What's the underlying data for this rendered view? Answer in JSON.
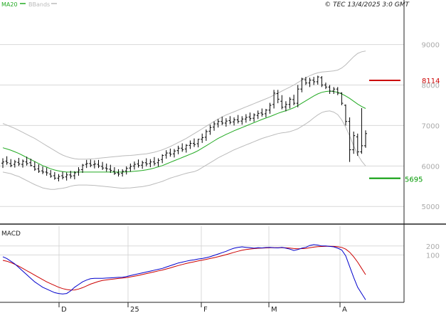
{
  "header": {
    "legend": [
      {
        "name": "MA20",
        "color": "#22aa22"
      },
      {
        "name": "BBands",
        "color": "#bbbbbb"
      }
    ],
    "copyright": "© TEC 13/4/2025 3:0 GMT"
  },
  "chart_data": [
    {
      "type": "line",
      "panel": "price",
      "ylim": [
        4600,
        10100
      ],
      "y_ticks": [
        5000,
        6000,
        7000,
        8000,
        9000
      ],
      "y_tick_labels": [
        "5000",
        "6000",
        "7000",
        "8000",
        "9000"
      ],
      "x_ticks": [
        "D",
        "25",
        "F",
        "M",
        "A"
      ],
      "grid": true,
      "levels": [
        {
          "label": "8114",
          "value": 8114,
          "color": "#cc0000"
        },
        {
          "label": "5695",
          "value": 5695,
          "color": "#009900"
        }
      ],
      "price_bars": [
        [
          6070,
          6190,
          5950,
          6100
        ],
        [
          6120,
          6240,
          6030,
          6080
        ],
        [
          6060,
          6170,
          5970,
          6010
        ],
        [
          6040,
          6150,
          5960,
          6100
        ],
        [
          6090,
          6200,
          6000,
          6050
        ],
        [
          6040,
          6160,
          5960,
          6120
        ],
        [
          6100,
          6230,
          6010,
          6060
        ],
        [
          6080,
          6180,
          5990,
          6010
        ],
        [
          5980,
          6110,
          5880,
          5920
        ],
        [
          5930,
          6040,
          5830,
          5870
        ],
        [
          5880,
          5990,
          5800,
          5850
        ],
        [
          5850,
          5960,
          5760,
          5830
        ],
        [
          5800,
          5900,
          5710,
          5750
        ],
        [
          5760,
          5850,
          5660,
          5700
        ],
        [
          5700,
          5800,
          5620,
          5740
        ],
        [
          5760,
          5860,
          5670,
          5720
        ],
        [
          5730,
          5840,
          5640,
          5780
        ],
        [
          5780,
          5880,
          5690,
          5750
        ],
        [
          5760,
          5870,
          5670,
          5830
        ],
        [
          5850,
          5970,
          5760,
          5900
        ],
        [
          5910,
          6050,
          5830,
          6020
        ],
        [
          6040,
          6150,
          5950,
          6060
        ],
        [
          6060,
          6160,
          5970,
          6020
        ],
        [
          6030,
          6140,
          5940,
          6050
        ],
        [
          6040,
          6150,
          5950,
          6000
        ],
        [
          5990,
          6100,
          5900,
          5950
        ],
        [
          5950,
          6060,
          5860,
          5930
        ],
        [
          5920,
          6030,
          5830,
          5890
        ],
        [
          5870,
          5970,
          5780,
          5820
        ],
        [
          5830,
          5920,
          5740,
          5800
        ],
        [
          5820,
          5920,
          5740,
          5870
        ],
        [
          5880,
          5990,
          5790,
          5940
        ],
        [
          5950,
          6060,
          5860,
          5990
        ],
        [
          6000,
          6110,
          5910,
          6040
        ],
        [
          6050,
          6160,
          5960,
          6010
        ],
        [
          6020,
          6130,
          5930,
          6080
        ],
        [
          6080,
          6190,
          5990,
          6050
        ],
        [
          6060,
          6170,
          5970,
          6100
        ],
        [
          6100,
          6220,
          6010,
          6060
        ],
        [
          6080,
          6190,
          5990,
          6140
        ],
        [
          6160,
          6290,
          6070,
          6260
        ],
        [
          6270,
          6390,
          6180,
          6320
        ],
        [
          6320,
          6430,
          6230,
          6290
        ],
        [
          6300,
          6420,
          6210,
          6370
        ],
        [
          6380,
          6500,
          6290,
          6440
        ],
        [
          6440,
          6560,
          6350,
          6400
        ],
        [
          6420,
          6540,
          6330,
          6510
        ],
        [
          6510,
          6630,
          6420,
          6560
        ],
        [
          6560,
          6680,
          6470,
          6530
        ],
        [
          6550,
          6670,
          6460,
          6660
        ],
        [
          6660,
          6800,
          6570,
          6700
        ],
        [
          6710,
          6900,
          6620,
          6850
        ],
        [
          6860,
          7020,
          6770,
          6950
        ],
        [
          6960,
          7100,
          6870,
          7040
        ],
        [
          7040,
          7160,
          6950,
          7100
        ],
        [
          7100,
          7220,
          7010,
          7060
        ],
        [
          7060,
          7180,
          6970,
          7110
        ],
        [
          7120,
          7230,
          7030,
          7080
        ],
        [
          7090,
          7200,
          7000,
          7140
        ],
        [
          7140,
          7260,
          7050,
          7100
        ],
        [
          7110,
          7230,
          7020,
          7160
        ],
        [
          7160,
          7280,
          7070,
          7200
        ],
        [
          7210,
          7320,
          7110,
          7170
        ],
        [
          7180,
          7300,
          7090,
          7260
        ],
        [
          7250,
          7370,
          7160,
          7300
        ],
        [
          7310,
          7420,
          7220,
          7280
        ],
        [
          7290,
          7410,
          7200,
          7380
        ],
        [
          7380,
          7560,
          7290,
          7500
        ],
        [
          7520,
          7880,
          7420,
          7800
        ],
        [
          7790,
          7880,
          7550,
          7650
        ],
        [
          7600,
          7750,
          7400,
          7450
        ],
        [
          7460,
          7600,
          7350,
          7520
        ],
        [
          7520,
          7700,
          7420,
          7650
        ],
        [
          7640,
          7760,
          7500,
          7550
        ],
        [
          7550,
          8000,
          7450,
          7900
        ],
        [
          7900,
          8180,
          7820,
          8150
        ],
        [
          8130,
          8200,
          8000,
          8050
        ],
        [
          8050,
          8180,
          7950,
          8120
        ],
        [
          8120,
          8200,
          8000,
          8080
        ],
        [
          8080,
          8230,
          8010,
          8200
        ],
        [
          8180,
          8220,
          7950,
          8000
        ],
        [
          8000,
          8060,
          7900,
          7950
        ],
        [
          7950,
          8000,
          7780,
          7850
        ],
        [
          7850,
          7950,
          7780,
          7900
        ],
        [
          7900,
          7950,
          7750,
          7800
        ],
        [
          7800,
          7820,
          7500,
          7550
        ],
        [
          7500,
          7520,
          7000,
          7100
        ],
        [
          7100,
          7200,
          6100,
          6400
        ],
        [
          6400,
          6850,
          6300,
          6750
        ],
        [
          6720,
          6800,
          6250,
          6350
        ],
        [
          6350,
          7430,
          6300,
          6500
        ],
        [
          6500,
          6880,
          6450,
          6800
        ]
      ],
      "series": [
        {
          "name": "MA20",
          "color": "#22aa22",
          "values": [
            6450,
            6420,
            6390,
            6350,
            6310,
            6260,
            6210,
            6160,
            6110,
            6060,
            6010,
            5970,
            5930,
            5900,
            5880,
            5860,
            5850,
            5850,
            5850,
            5850,
            5850,
            5850,
            5850,
            5850,
            5850,
            5850,
            5850,
            5850,
            5850,
            5850,
            5850,
            5855,
            5860,
            5870,
            5880,
            5890,
            5905,
            5925,
            5950,
            5980,
            6010,
            6050,
            6090,
            6130,
            6170,
            6210,
            6250,
            6290,
            6330,
            6380,
            6440,
            6500,
            6560,
            6620,
            6680,
            6730,
            6780,
            6825,
            6870,
            6910,
            6950,
            6990,
            7030,
            7070,
            7110,
            7150,
            7185,
            7220,
            7260,
            7300,
            7335,
            7365,
            7400,
            7440,
            7490,
            7550,
            7610,
            7670,
            7730,
            7780,
            7820,
            7840,
            7850,
            7840,
            7820,
            7780,
            7730,
            7670,
            7600,
            7530,
            7470,
            7420
          ]
        },
        {
          "name": "BBands upper",
          "color": "#bbbbbb",
          "values": [
            7050,
            7010,
            6970,
            6930,
            6880,
            6830,
            6780,
            6730,
            6680,
            6620,
            6560,
            6500,
            6440,
            6380,
            6320,
            6270,
            6230,
            6200,
            6180,
            6170,
            6170,
            6170,
            6175,
            6180,
            6190,
            6200,
            6210,
            6220,
            6230,
            6240,
            6250,
            6255,
            6260,
            6270,
            6280,
            6290,
            6300,
            6320,
            6340,
            6370,
            6400,
            6440,
            6480,
            6530,
            6580,
            6630,
            6680,
            6740,
            6800,
            6860,
            6920,
            6980,
            7040,
            7100,
            7160,
            7210,
            7260,
            7300,
            7340,
            7380,
            7420,
            7460,
            7500,
            7540,
            7580,
            7620,
            7660,
            7700,
            7750,
            7800,
            7850,
            7900,
            7950,
            8000,
            8060,
            8120,
            8180,
            8230,
            8270,
            8300,
            8320,
            8330,
            8340,
            8350,
            8370,
            8420,
            8500,
            8600,
            8700,
            8780,
            8820,
            8840
          ]
        },
        {
          "name": "BBands lower",
          "color": "#bbbbbb",
          "values": [
            5850,
            5830,
            5810,
            5770,
            5740,
            5690,
            5640,
            5590,
            5540,
            5500,
            5460,
            5440,
            5420,
            5420,
            5440,
            5450,
            5470,
            5500,
            5520,
            5530,
            5530,
            5530,
            5525,
            5520,
            5510,
            5500,
            5490,
            5480,
            5470,
            5460,
            5450,
            5455,
            5460,
            5470,
            5480,
            5490,
            5510,
            5530,
            5560,
            5590,
            5620,
            5660,
            5700,
            5730,
            5760,
            5790,
            5820,
            5840,
            5860,
            5900,
            5960,
            6020,
            6080,
            6140,
            6200,
            6250,
            6300,
            6350,
            6400,
            6440,
            6480,
            6520,
            6560,
            6600,
            6640,
            6680,
            6710,
            6740,
            6770,
            6800,
            6820,
            6830,
            6850,
            6880,
            6920,
            6980,
            7040,
            7110,
            7190,
            7260,
            7320,
            7350,
            7360,
            7330,
            7270,
            7140,
            6960,
            6740,
            6500,
            6280,
            6120,
            6000
          ]
        }
      ]
    },
    {
      "type": "line",
      "panel": "macd",
      "title": "MACD",
      "ylim": [
        -420,
        420
      ],
      "y_ticks": [
        100,
        200
      ],
      "y_tick_labels": [
        "100",
        "200"
      ],
      "x_ticks": [
        "D",
        "25",
        "F",
        "M",
        "A"
      ],
      "grid": true,
      "series": [
        {
          "name": "MACD",
          "color": "#0000cc",
          "values": [
            80,
            60,
            30,
            0,
            -40,
            -80,
            -120,
            -160,
            -200,
            -230,
            -260,
            -280,
            -300,
            -320,
            -330,
            -335,
            -330,
            -300,
            -260,
            -230,
            -200,
            -180,
            -165,
            -160,
            -160,
            -160,
            -158,
            -155,
            -152,
            -150,
            -148,
            -140,
            -130,
            -120,
            -110,
            -100,
            -90,
            -80,
            -70,
            -60,
            -50,
            -35,
            -20,
            -5,
            10,
            20,
            30,
            40,
            45,
            55,
            60,
            70,
            80,
            95,
            110,
            125,
            140,
            160,
            175,
            185,
            190,
            185,
            180,
            175,
            180,
            178,
            182,
            185,
            180,
            178,
            185,
            175,
            165,
            150,
            160,
            175,
            185,
            205,
            215,
            210,
            200,
            200,
            195,
            190,
            175,
            155,
            90,
            -30,
            -150,
            -260,
            -330,
            -400
          ]
        },
        {
          "name": "Signal",
          "color": "#cc0000",
          "values": [
            40,
            30,
            15,
            -5,
            -25,
            -50,
            -75,
            -100,
            -125,
            -150,
            -175,
            -200,
            -220,
            -240,
            -260,
            -275,
            -285,
            -292,
            -290,
            -280,
            -265,
            -245,
            -225,
            -210,
            -195,
            -185,
            -178,
            -172,
            -167,
            -162,
            -158,
            -152,
            -145,
            -137,
            -128,
            -118,
            -108,
            -98,
            -88,
            -78,
            -68,
            -56,
            -44,
            -31,
            -18,
            -6,
            5,
            15,
            24,
            33,
            42,
            51,
            60,
            70,
            80,
            91,
            103,
            116,
            129,
            141,
            152,
            160,
            166,
            170,
            174,
            176,
            178,
            180,
            180,
            180,
            181,
            179,
            176,
            171,
            169,
            170,
            173,
            180,
            187,
            192,
            194,
            196,
            196,
            195,
            191,
            184,
            165,
            130,
            80,
            20,
            -50,
            -120
          ]
        }
      ]
    }
  ]
}
